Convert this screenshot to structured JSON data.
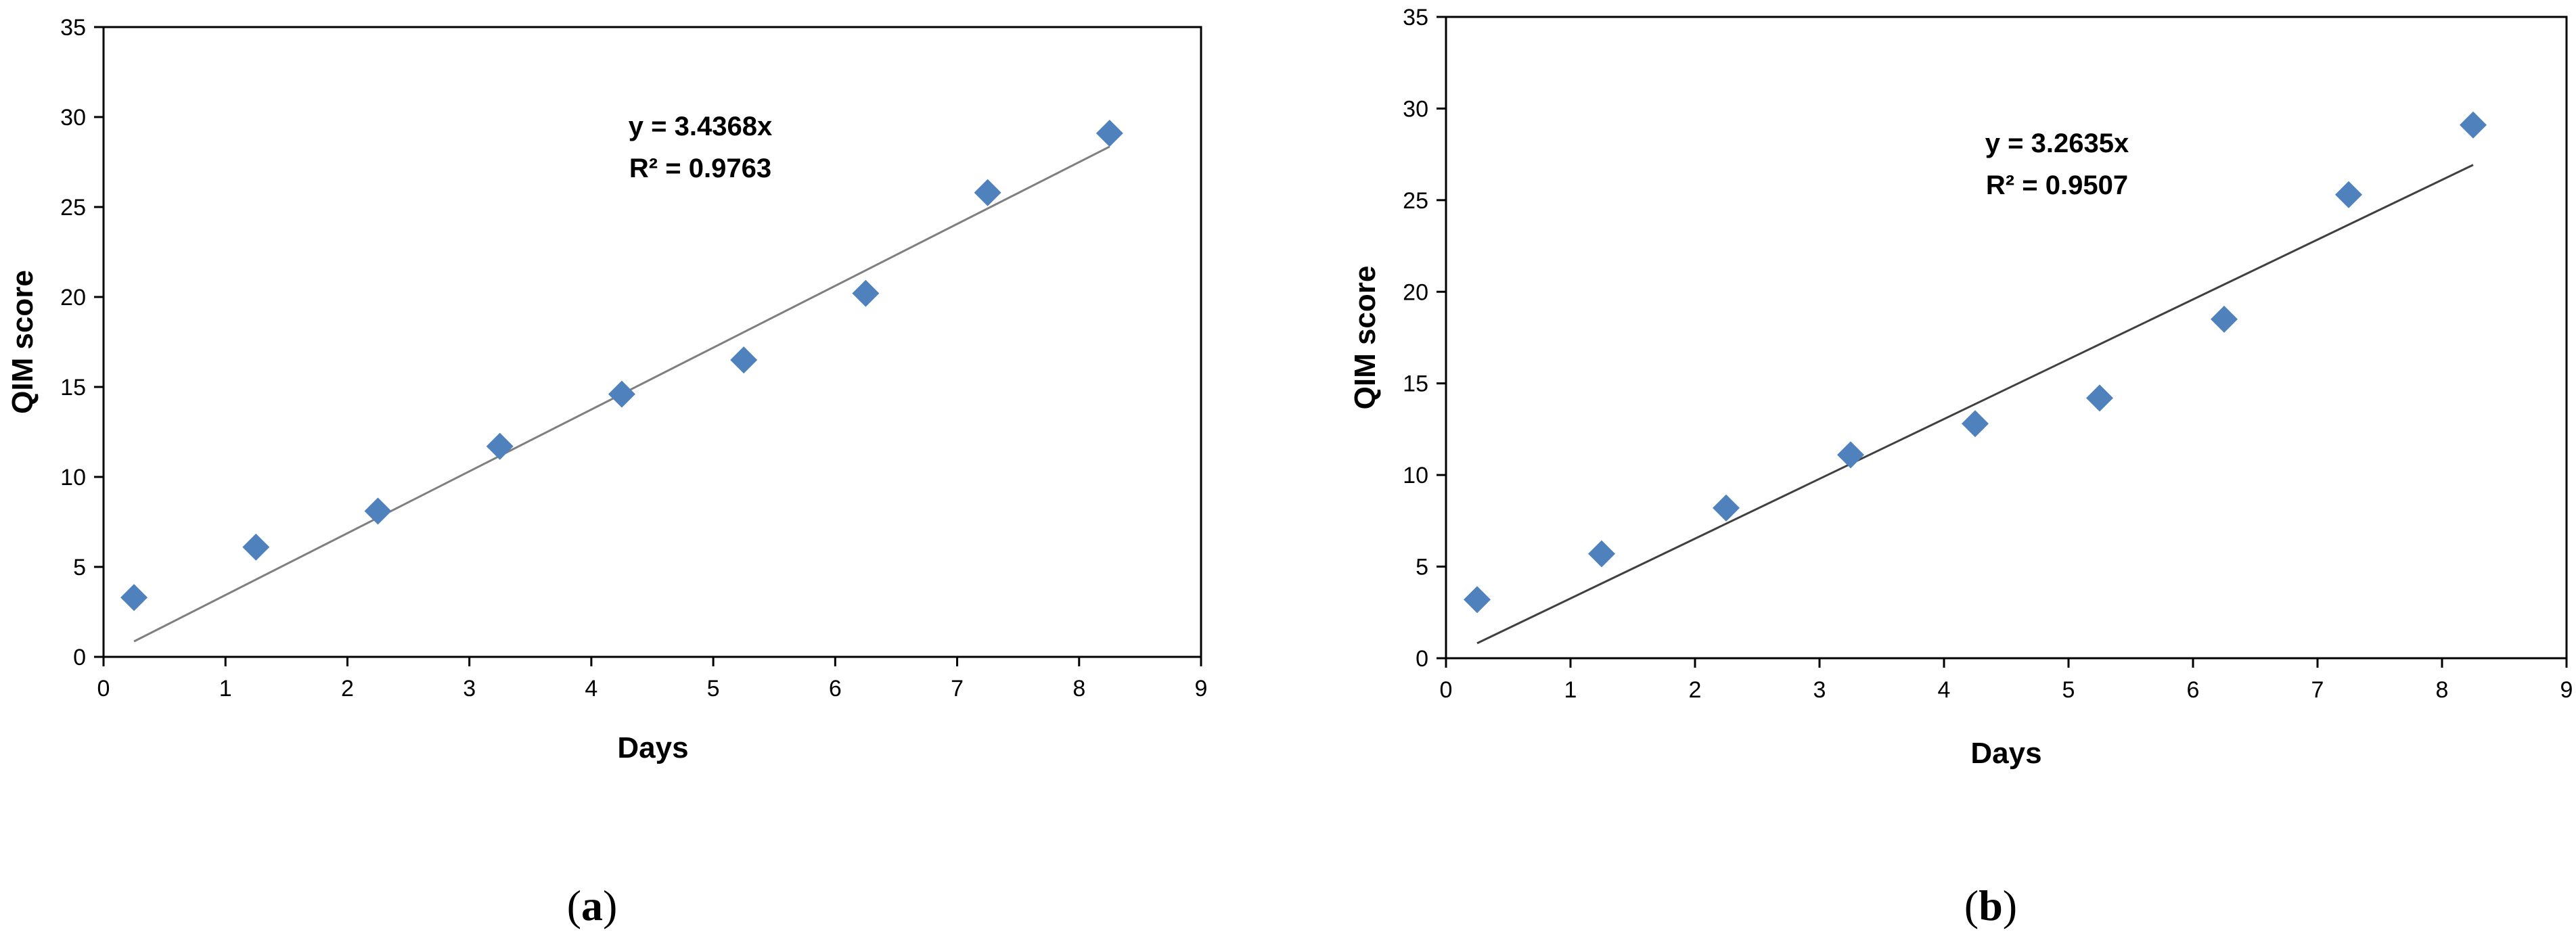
{
  "figure": {
    "panels": [
      {
        "label_open": "(",
        "label_letter": "a",
        "label_close": ")"
      },
      {
        "label_open": "(",
        "label_letter": "b",
        "label_close": ")"
      }
    ]
  },
  "chart_data": [
    {
      "type": "scatter",
      "title": "",
      "xlabel": "Days",
      "ylabel": "QIM score",
      "xlim": [
        0,
        9
      ],
      "ylim": [
        0,
        35
      ],
      "xticks": [
        "0",
        "1",
        "2",
        "3",
        "4",
        "5",
        "6",
        "7",
        "8",
        "9"
      ],
      "yticks": [
        "0",
        "5",
        "10",
        "15",
        "20",
        "25",
        "30",
        "35"
      ],
      "grid": false,
      "legend": "none",
      "marker_color": "#4F81BD",
      "trend_color": "#7F7F7F",
      "points": [
        {
          "x": 0.25,
          "y": 3.3
        },
        {
          "x": 1.25,
          "y": 6.1
        },
        {
          "x": 2.25,
          "y": 8.1
        },
        {
          "x": 3.25,
          "y": 11.7
        },
        {
          "x": 4.25,
          "y": 14.6
        },
        {
          "x": 5.25,
          "y": 16.5
        },
        {
          "x": 6.25,
          "y": 20.2
        },
        {
          "x": 7.25,
          "y": 25.8
        },
        {
          "x": 8.25,
          "y": 29.1
        }
      ],
      "trendline": {
        "slope": 3.4368,
        "x_from": 0.25,
        "x_to": 8.25
      },
      "equation": "y = 3.4368x",
      "r_squared": "R² = 0.9763"
    },
    {
      "type": "scatter",
      "title": "",
      "xlabel": "Days",
      "ylabel": "QIM score",
      "xlim": [
        0,
        9
      ],
      "ylim": [
        0,
        35
      ],
      "xticks": [
        "0",
        "1",
        "2",
        "3",
        "4",
        "5",
        "6",
        "7",
        "8",
        "9"
      ],
      "yticks": [
        "0",
        "5",
        "10",
        "15",
        "20",
        "25",
        "30",
        "35"
      ],
      "grid": false,
      "legend": "none",
      "marker_color": "#4F81BD",
      "trend_color": "#404040",
      "points": [
        {
          "x": 0.25,
          "y": 3.2
        },
        {
          "x": 1.25,
          "y": 5.7
        },
        {
          "x": 2.25,
          "y": 8.2
        },
        {
          "x": 3.25,
          "y": 11.1
        },
        {
          "x": 4.25,
          "y": 12.8
        },
        {
          "x": 5.25,
          "y": 14.2
        },
        {
          "x": 6.25,
          "y": 18.5
        },
        {
          "x": 7.25,
          "y": 25.3
        },
        {
          "x": 8.25,
          "y": 29.1
        }
      ],
      "trendline": {
        "slope": 3.2635,
        "x_from": 0.25,
        "x_to": 8.25
      },
      "equation": "y = 3.2635x",
      "r_squared": "R² = 0.9507"
    }
  ]
}
